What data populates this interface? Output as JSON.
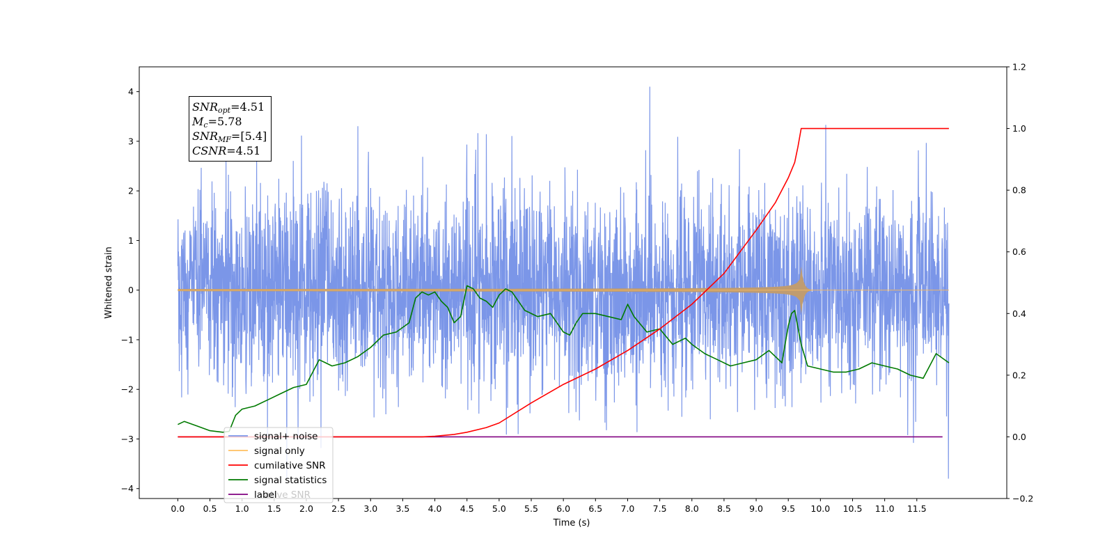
{
  "chart_data": {
    "type": "line",
    "xlabel": "Time (s)",
    "ylabel": "Whitened strain",
    "xlim": [
      -0.6,
      12.9
    ],
    "ylim": [
      -4.2,
      4.5
    ],
    "y2lim": [
      -0.2,
      1.2
    ],
    "xticks": [
      "0.0",
      "0.5",
      "1.0",
      "1.5",
      "2.0",
      "2.5",
      "3.0",
      "3.5",
      "4.0",
      "4.5",
      "5.0",
      "5.5",
      "6.0",
      "6.5",
      "7.0",
      "7.5",
      "8.0",
      "8.5",
      "9.0",
      "9.5",
      "10.0",
      "10.5",
      "11.0",
      "11.5"
    ],
    "yticks": [
      "4",
      "3",
      "2",
      "1",
      "0",
      "−1",
      "−2",
      "−3",
      "−4"
    ],
    "y2ticks": [
      "1.2",
      "1.0",
      "0.8",
      "0.6",
      "0.4",
      "0.2",
      "0.0",
      "−0.2"
    ],
    "legend_position": "lower-left",
    "series": [
      {
        "name": "signal+ noise",
        "axis": "left",
        "color": "#7b96e8",
        "x_range": [
          0.0,
          12.0
        ],
        "mean": 0.0,
        "std": 1.0,
        "peak": 4.1
      },
      {
        "name": "signal only",
        "axis": "left",
        "color": "#ffbf60",
        "chirp_fill_color": "#c09c70",
        "x_range": [
          0.0,
          12.0
        ],
        "merger_time": 9.7,
        "peak_amplitude": 0.48
      },
      {
        "name": "cumilative SNR",
        "axis": "right",
        "color": "#ff0000",
        "x": [
          0.0,
          3.5,
          3.8,
          4.0,
          4.3,
          4.5,
          4.8,
          5.0,
          5.5,
          6.0,
          6.5,
          7.0,
          7.5,
          8.0,
          8.5,
          9.0,
          9.3,
          9.5,
          9.6,
          9.65,
          9.7,
          12.0
        ],
        "values": [
          0.0,
          0.0,
          0.0,
          0.002,
          0.008,
          0.015,
          0.03,
          0.045,
          0.11,
          0.17,
          0.22,
          0.28,
          0.35,
          0.43,
          0.53,
          0.67,
          0.76,
          0.84,
          0.89,
          0.94,
          1.0,
          1.0
        ]
      },
      {
        "name": "signal statistics",
        "axis": "right",
        "color": "#007a00",
        "x": [
          0.0,
          0.1,
          0.3,
          0.5,
          0.7,
          0.8,
          0.9,
          1.0,
          1.2,
          1.4,
          1.6,
          1.8,
          2.0,
          2.2,
          2.3,
          2.4,
          2.6,
          2.8,
          3.0,
          3.2,
          3.4,
          3.6,
          3.7,
          3.8,
          3.9,
          4.0,
          4.1,
          4.2,
          4.3,
          4.4,
          4.5,
          4.6,
          4.7,
          4.8,
          4.9,
          5.0,
          5.1,
          5.2,
          5.4,
          5.6,
          5.8,
          6.0,
          6.1,
          6.2,
          6.3,
          6.4,
          6.5,
          6.7,
          6.9,
          7.0,
          7.1,
          7.3,
          7.5,
          7.7,
          7.9,
          8.0,
          8.2,
          8.4,
          8.6,
          8.8,
          9.0,
          9.2,
          9.4,
          9.5,
          9.55,
          9.6,
          9.7,
          9.8,
          10.0,
          10.2,
          10.4,
          10.6,
          10.8,
          11.0,
          11.2,
          11.4,
          11.6,
          11.8,
          12.0
        ],
        "values": [
          0.04,
          0.05,
          0.035,
          0.02,
          0.015,
          0.018,
          0.07,
          0.09,
          0.1,
          0.12,
          0.14,
          0.16,
          0.17,
          0.25,
          0.24,
          0.23,
          0.24,
          0.26,
          0.29,
          0.33,
          0.34,
          0.37,
          0.45,
          0.47,
          0.46,
          0.47,
          0.44,
          0.42,
          0.37,
          0.39,
          0.49,
          0.48,
          0.45,
          0.44,
          0.42,
          0.46,
          0.48,
          0.47,
          0.41,
          0.39,
          0.4,
          0.34,
          0.33,
          0.37,
          0.4,
          0.4,
          0.4,
          0.39,
          0.38,
          0.43,
          0.39,
          0.34,
          0.35,
          0.3,
          0.32,
          0.3,
          0.27,
          0.25,
          0.23,
          0.24,
          0.25,
          0.28,
          0.24,
          0.36,
          0.4,
          0.41,
          0.3,
          0.23,
          0.22,
          0.21,
          0.21,
          0.22,
          0.24,
          0.23,
          0.22,
          0.2,
          0.19,
          0.27,
          0.24
        ]
      },
      {
        "name": "label",
        "axis": "right",
        "color": "#800080",
        "x": [
          0.0,
          11.9
        ],
        "values": [
          0.0,
          0.0
        ]
      }
    ],
    "legend_ghost_text": "ative SNR"
  },
  "annotation": {
    "snr_opt": {
      "symbol": "SNR",
      "sub": "opt",
      "value": "=4.51"
    },
    "mc": {
      "symbol": "M",
      "sub": "c",
      "value": "=5.78"
    },
    "snr_mf": {
      "symbol": "SNR",
      "sub": "MF",
      "value": "=[5.4]"
    },
    "csnr": {
      "symbol": "CSNR",
      "value": "=4.51"
    }
  }
}
